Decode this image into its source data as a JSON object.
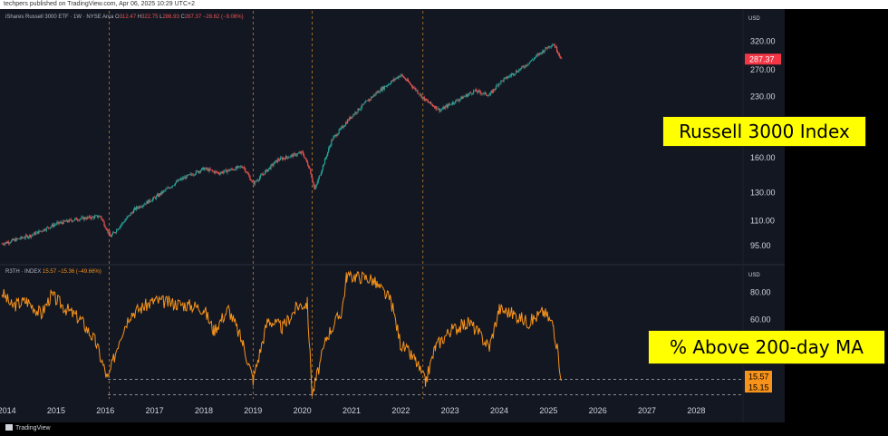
{
  "header": {
    "publisher_text": "techpers published on TradingView.com, Apr 06, 2025 10:29 UTC+2"
  },
  "footer": {
    "brand": "TradingView"
  },
  "colors": {
    "background": "#131722",
    "price_up": "#26a69a",
    "price_down": "#ef5350",
    "breadth_line": "#f7931a",
    "callout": "#ffff00",
    "last_price_badge": "#f23645"
  },
  "price_pane": {
    "legend": {
      "symbol": "iShares Russell 3000 ETF · 1W · NYSE Arca",
      "o_label": "O",
      "o_value": "312.47",
      "h_label": "H",
      "h_value": "322.75",
      "l_label": "L",
      "l_value": "286.93",
      "c_label": "C",
      "c_value": "287.37",
      "change": "−28.62 (−9.06%)"
    },
    "currency": "USD",
    "last_price": "287.37",
    "callout": "Russell 3000 Index"
  },
  "breadth_pane": {
    "legend": {
      "symbol": "R3TH · INDEX",
      "value": "15.57",
      "change": "−15.36 (−49.66%)"
    },
    "currency": "USD",
    "last_value_badge": "15.57",
    "level_badge": "15.15",
    "callout": "% Above 200-day MA"
  },
  "chart_data": [
    {
      "type": "candlestick",
      "scale": "log",
      "y_ticks": [
        "320.00",
        "270.00",
        "230.00",
        "160.00",
        "130.00",
        "110.00",
        "95.00"
      ],
      "x": [
        "2013.9",
        "2014.5",
        "2015.0",
        "2015.4",
        "2015.9",
        "2016.1",
        "2016.6",
        "2017.0",
        "2017.5",
        "2018.0",
        "2018.3",
        "2018.8",
        "2019.0",
        "2019.5",
        "2020.0",
        "2020.15",
        "2020.25",
        "2020.6",
        "2021.0",
        "2021.5",
        "2022.0",
        "2022.3",
        "2022.5",
        "2022.8",
        "2023.0",
        "2023.5",
        "2023.8",
        "2024.0",
        "2024.5",
        "2025.0",
        "2025.1",
        "2025.27"
      ],
      "values": [
        96,
        101,
        108,
        111,
        113,
        100,
        118,
        126,
        140,
        150,
        146,
        152,
        137,
        158,
        165,
        150,
        132,
        178,
        205,
        235,
        262,
        240,
        225,
        212,
        220,
        238,
        232,
        250,
        275,
        310,
        315,
        287.37
      ],
      "last": 287.37,
      "ylim": [
        88,
        355
      ]
    },
    {
      "type": "line",
      "name": "R3TH",
      "y_ticks": [
        "80.00",
        "60.00"
      ],
      "x": [
        "2013.9",
        "2014.1",
        "2014.4",
        "2014.7",
        "2014.9",
        "2015.2",
        "2015.5",
        "2015.8",
        "2016.05",
        "2016.3",
        "2016.5",
        "2016.8",
        "2017.0",
        "2017.4",
        "2017.8",
        "2018.0",
        "2018.2",
        "2018.5",
        "2018.8",
        "2019.0",
        "2019.3",
        "2019.6",
        "2019.9",
        "2020.1",
        "2020.2",
        "2020.5",
        "2020.8",
        "2020.9",
        "2021.1",
        "2021.4",
        "2021.8",
        "2022.0",
        "2022.3",
        "2022.5",
        "2022.7",
        "2023.0",
        "2023.4",
        "2023.8",
        "2024.0",
        "2024.3",
        "2024.6",
        "2024.9",
        "2025.1",
        "2025.27"
      ],
      "values": [
        80,
        70,
        74,
        64,
        78,
        68,
        60,
        44,
        16,
        48,
        64,
        70,
        74,
        72,
        70,
        68,
        52,
        68,
        42,
        16,
        60,
        54,
        70,
        72,
        5,
        48,
        66,
        92,
        92,
        90,
        74,
        42,
        30,
        14,
        40,
        52,
        58,
        40,
        68,
        64,
        58,
        66,
        56,
        15.57
      ],
      "ylim": [
        2,
        95
      ]
    }
  ],
  "x_axis": {
    "ticks": [
      "2014",
      "2015",
      "2016",
      "2017",
      "2018",
      "2019",
      "2020",
      "2021",
      "2022",
      "2023",
      "2024",
      "2025",
      "2026",
      "2027",
      "2028"
    ]
  }
}
